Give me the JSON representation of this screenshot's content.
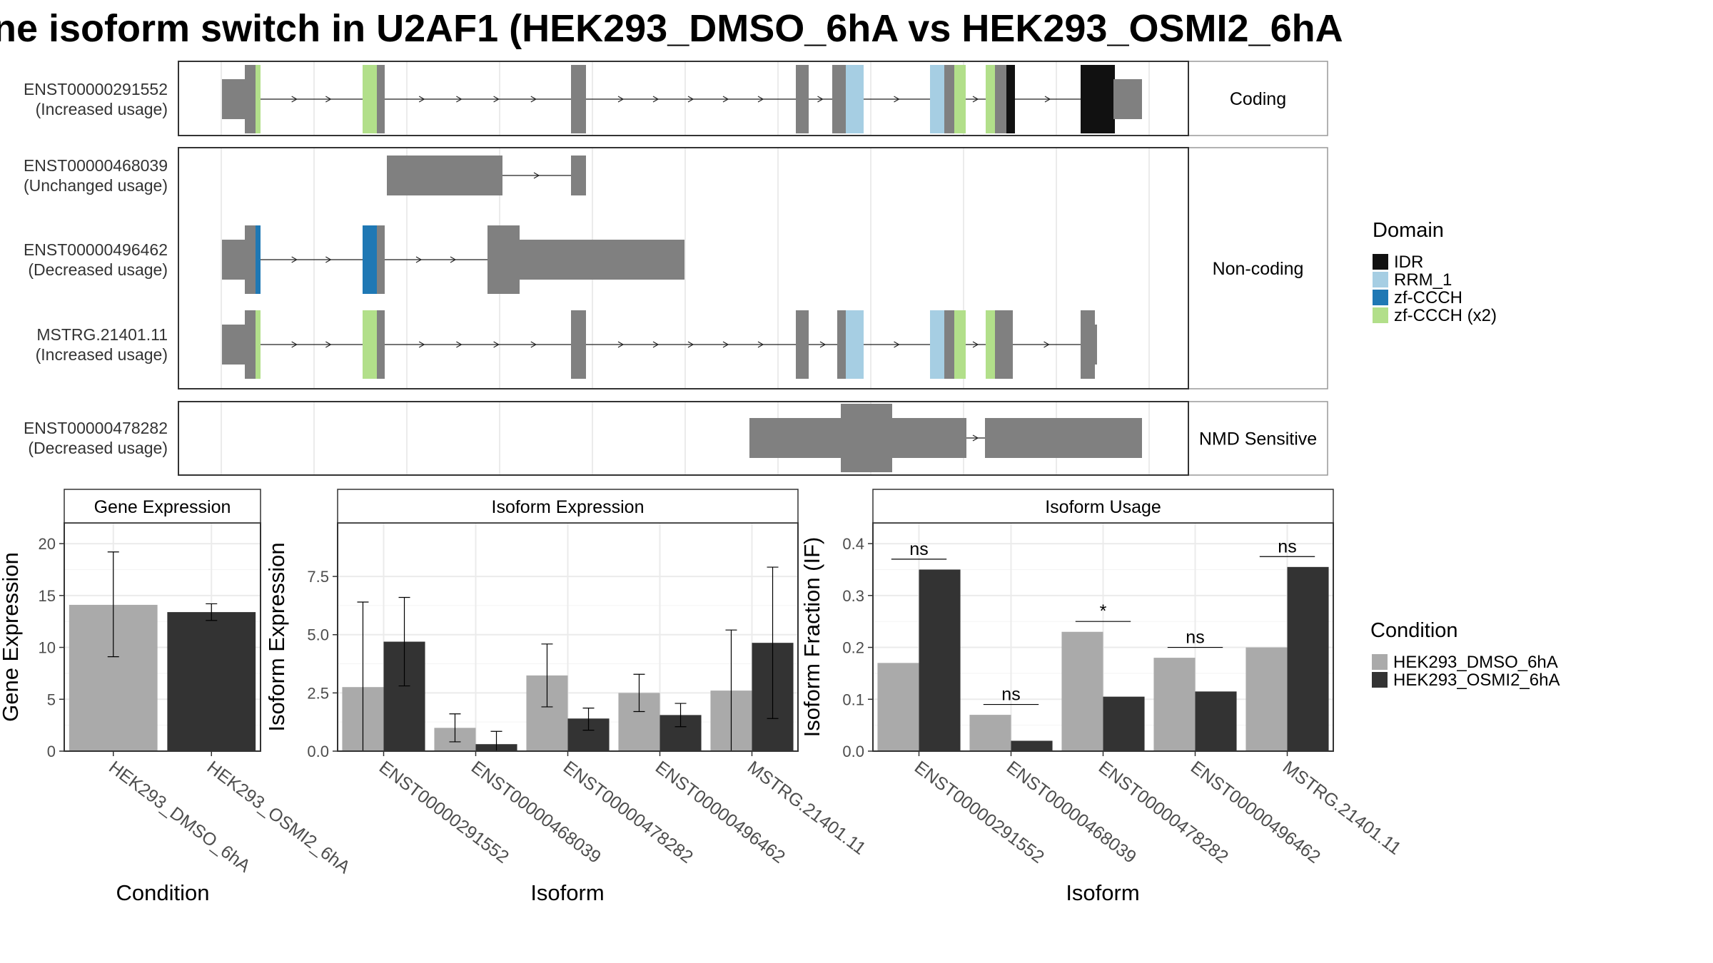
{
  "title": "ne isoform switch in U2AF1 (HEK293_DMSO_6hA vs HEK293_OSMI2_6hA",
  "colors": {
    "exon": "#808080",
    "condition_1": "#aaaaaa",
    "condition_2": "#333333",
    "IDR": "#111111",
    "RRM_1": "#a6cee3",
    "zf-CCCH": "#1f78b4",
    "zf-CCCH (x2)": "#b2df8a"
  },
  "structure_panels": [
    {
      "label": "Coding",
      "tracks": [
        {
          "id": "ENST00000291552",
          "usage": "(Increased usage)"
        }
      ]
    },
    {
      "label": "Non-coding",
      "tracks": [
        {
          "id": "ENST00000468039",
          "usage": "(Unchanged usage)"
        },
        {
          "id": "ENST00000496462",
          "usage": "(Decreased usage)"
        },
        {
          "id": "MSTRG.21401.11",
          "usage": "(Increased usage)"
        }
      ]
    },
    {
      "label": "NMD Sensitive",
      "tracks": [
        {
          "id": "ENST00000478282",
          "usage": "(Decreased usage)"
        }
      ]
    }
  ],
  "domain_legend": {
    "title": "Domain",
    "items": [
      {
        "name": "IDR",
        "color": "#111111"
      },
      {
        "name": "RRM_1",
        "color": "#a6cee3"
      },
      {
        "name": "zf-CCCH",
        "color": "#1f78b4"
      },
      {
        "name": "zf-CCCH (x2)",
        "color": "#b2df8a"
      }
    ]
  },
  "condition_legend": {
    "title": "Condition",
    "items": [
      {
        "name": "HEK293_DMSO_6hA",
        "color": "#aaaaaa"
      },
      {
        "name": "HEK293_OSMI2_6hA",
        "color": "#333333"
      }
    ]
  },
  "chart_data": [
    {
      "type": "bar",
      "title": "Gene Expression",
      "xlabel": "Condition",
      "ylabel": "Gene Expression",
      "ylim": [
        0,
        22
      ],
      "yticks": [
        0,
        5,
        10,
        15,
        20
      ],
      "categories": [
        "HEK293_DMSO_6hA",
        "HEK293_OSMI2_6hA"
      ],
      "series": [
        {
          "values": [
            14.1,
            13.4
          ],
          "err_low": [
            9.1,
            12.6
          ],
          "err_high": [
            19.2,
            14.2
          ]
        }
      ],
      "significance": []
    },
    {
      "type": "bar",
      "title": "Isoform Expression",
      "xlabel": "Isoform",
      "ylabel": "Isoform Expression",
      "ylim": [
        0,
        9.8
      ],
      "yticks": [
        0.0,
        2.5,
        5.0,
        7.5
      ],
      "categories": [
        "ENST00000291552",
        "ENST00000468039",
        "ENST00000478282",
        "ENST00000496462",
        "MSTRG.21401.11"
      ],
      "series": [
        {
          "name": "HEK293_DMSO_6hA",
          "values": [
            2.75,
            1.0,
            3.25,
            2.5,
            2.6
          ],
          "err_low": [
            0.0,
            0.4,
            1.9,
            1.7,
            0.0
          ],
          "err_high": [
            6.4,
            1.6,
            4.6,
            3.3,
            5.2
          ]
        },
        {
          "name": "HEK293_OSMI2_6hA",
          "values": [
            4.7,
            0.3,
            1.4,
            1.55,
            4.65
          ],
          "err_low": [
            2.8,
            0.0,
            0.9,
            1.05,
            1.4
          ],
          "err_high": [
            6.6,
            0.85,
            1.85,
            2.05,
            7.9
          ]
        }
      ],
      "significance": []
    },
    {
      "type": "bar",
      "title": "Isoform Usage",
      "xlabel": "Isoform",
      "ylabel": "Isoform Fraction (IF)",
      "ylim": [
        0,
        0.44
      ],
      "yticks": [
        0.0,
        0.1,
        0.2,
        0.3,
        0.4
      ],
      "categories": [
        "ENST00000291552",
        "ENST00000468039",
        "ENST00000478282",
        "ENST00000496462",
        "MSTRG.21401.11"
      ],
      "series": [
        {
          "name": "HEK293_DMSO_6hA",
          "values": [
            0.17,
            0.07,
            0.23,
            0.18,
            0.2
          ]
        },
        {
          "name": "HEK293_OSMI2_6hA",
          "values": [
            0.35,
            0.02,
            0.105,
            0.115,
            0.355
          ]
        }
      ],
      "significance": [
        {
          "label": "ns",
          "y": 0.37
        },
        {
          "label": "ns",
          "y": 0.09
        },
        {
          "label": "*",
          "y": 0.25
        },
        {
          "label": "ns",
          "y": 0.2
        },
        {
          "label": "ns",
          "y": 0.375
        }
      ]
    }
  ]
}
